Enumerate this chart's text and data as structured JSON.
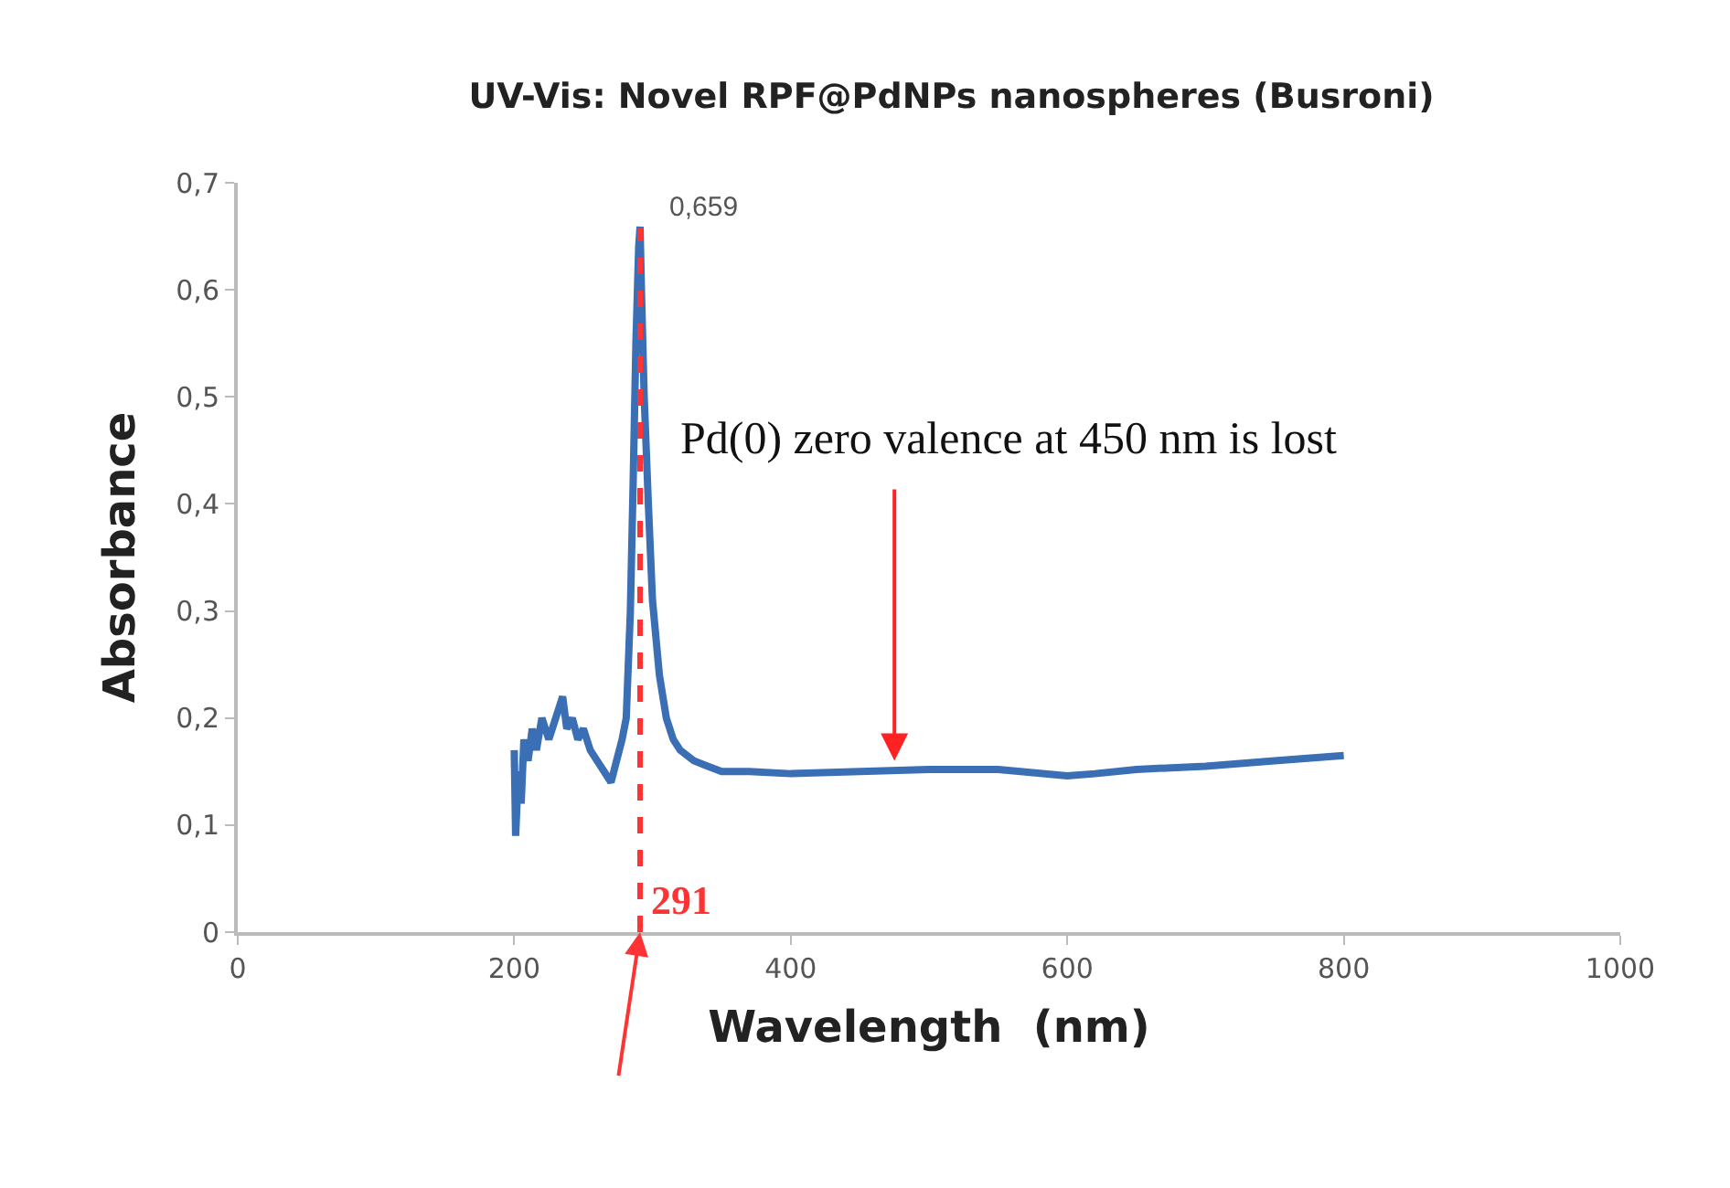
{
  "chart_data": {
    "type": "line",
    "title": "UV-Vis: Novel RPF@PdNPs nanospheres (Busroni)",
    "xlabel": "Wavelength  (nm)",
    "ylabel": "Absorbance",
    "x": [
      200,
      201,
      203,
      205,
      207,
      210,
      213,
      216,
      220,
      225,
      230,
      235,
      238,
      242,
      246,
      250,
      255,
      260,
      265,
      270,
      274,
      278,
      281,
      284,
      286,
      288,
      290,
      291,
      292,
      294,
      297,
      300,
      305,
      310,
      315,
      320,
      330,
      340,
      350,
      370,
      400,
      450,
      500,
      550,
      600,
      620,
      650,
      700,
      750,
      800
    ],
    "series": [
      {
        "color": "#3a6eb5",
        "values": [
          0.17,
          0.09,
          0.15,
          0.12,
          0.18,
          0.16,
          0.19,
          0.17,
          0.2,
          0.18,
          0.2,
          0.22,
          0.19,
          0.2,
          0.18,
          0.19,
          0.17,
          0.16,
          0.15,
          0.14,
          0.16,
          0.18,
          0.2,
          0.3,
          0.42,
          0.55,
          0.64,
          0.659,
          0.6,
          0.5,
          0.4,
          0.31,
          0.24,
          0.2,
          0.18,
          0.17,
          0.16,
          0.155,
          0.15,
          0.15,
          0.148,
          0.15,
          0.152,
          0.152,
          0.146,
          0.148,
          0.152,
          0.155,
          0.16,
          0.165
        ]
      }
    ],
    "xlim": [
      0,
      1000
    ],
    "xticks": [
      0,
      200,
      400,
      600,
      800,
      1000
    ],
    "ylim": [
      0,
      0.7
    ],
    "yticks": [
      0,
      {
        "value": 0.1,
        "label": "0,1"
      },
      {
        "value": 0.2,
        "label": "0,2"
      },
      {
        "value": 0.3,
        "label": "0,3"
      },
      {
        "value": 0.4,
        "label": "0,4"
      },
      {
        "value": 0.5,
        "label": "0,5"
      },
      {
        "value": 0.6,
        "label": "0,6"
      },
      {
        "value": 0.7,
        "label": "0,7"
      }
    ],
    "ref_lines": [
      {
        "axis": "x",
        "value": 291,
        "label": "291",
        "color": "#ff3333",
        "line_style": "dashed"
      }
    ],
    "annotations": [
      {
        "text": "0,659",
        "x": 291,
        "y": 0.659
      },
      {
        "text": "Pd(0) zero valence at 450 nm is lost",
        "x": 475,
        "y": 0.16
      }
    ],
    "marker": "none",
    "line_style": "solid"
  }
}
